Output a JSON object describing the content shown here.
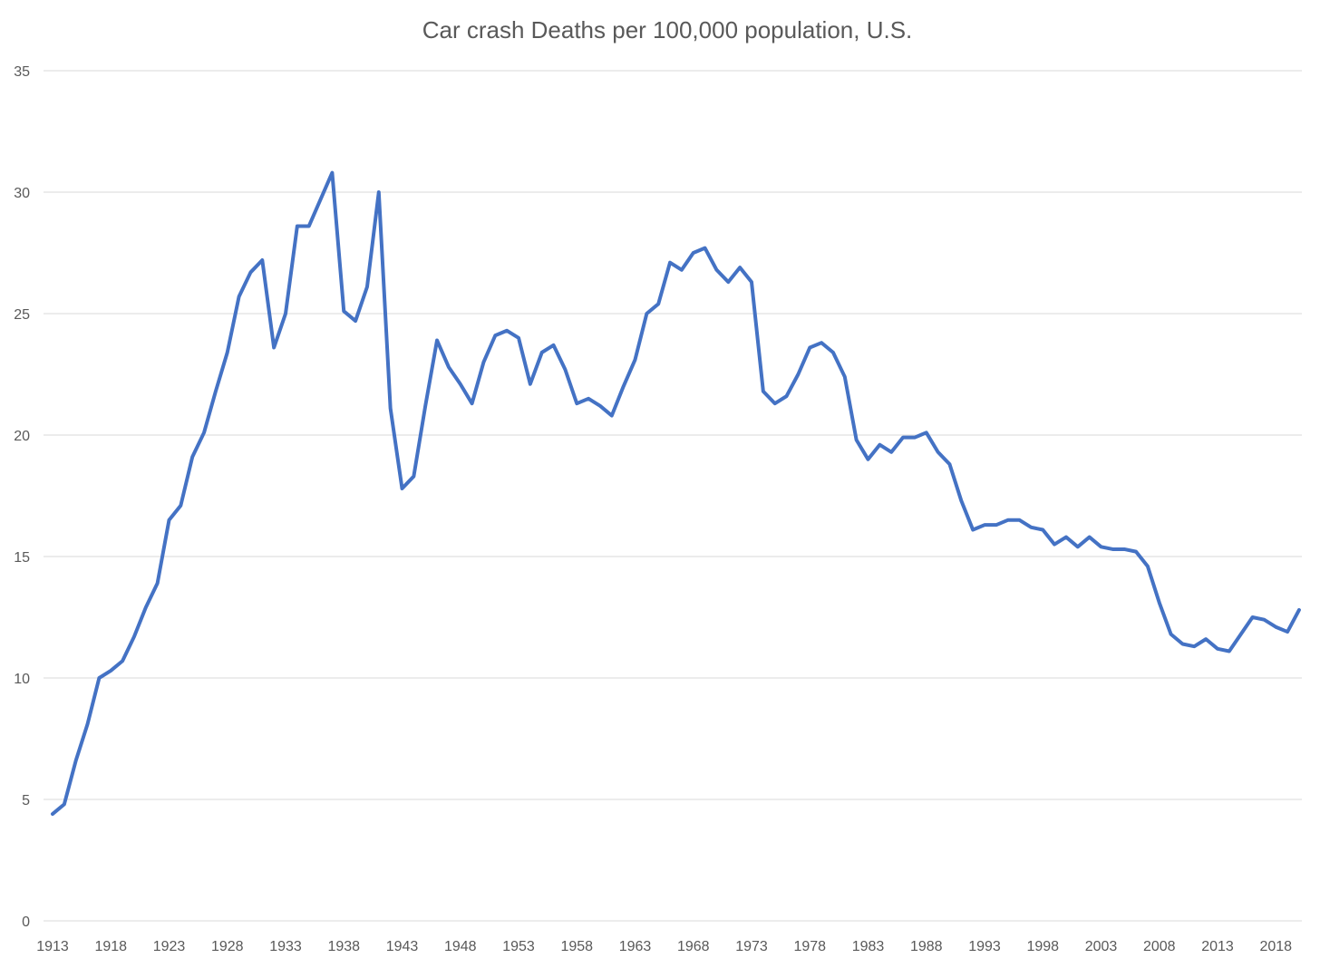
{
  "chart_data": {
    "type": "line",
    "title": "Car crash Deaths per 100,000 population, U.S.",
    "xlabel": "",
    "ylabel": "",
    "ylim": [
      0,
      35
    ],
    "yticks": [
      0,
      5,
      10,
      15,
      20,
      25,
      30,
      35
    ],
    "xtick_labels": [
      "1913",
      "1918",
      "1923",
      "1928",
      "1933",
      "1938",
      "1943",
      "1948",
      "1953",
      "1958",
      "1963",
      "1968",
      "1973",
      "1978",
      "1983",
      "1988",
      "1993",
      "1998",
      "2003",
      "2008",
      "2013",
      "2018"
    ],
    "grid": true,
    "legend": "none",
    "line_color": "#4472c4",
    "grid_color": "#d9d9d9",
    "text_color": "#595959",
    "x": [
      1913,
      1914,
      1915,
      1916,
      1917,
      1918,
      1919,
      1920,
      1921,
      1922,
      1923,
      1924,
      1925,
      1926,
      1927,
      1928,
      1929,
      1930,
      1931,
      1932,
      1933,
      1934,
      1935,
      1936,
      1937,
      1938,
      1939,
      1940,
      1941,
      1942,
      1943,
      1944,
      1945,
      1946,
      1947,
      1948,
      1949,
      1950,
      1951,
      1952,
      1953,
      1954,
      1955,
      1956,
      1957,
      1958,
      1959,
      1960,
      1961,
      1962,
      1963,
      1964,
      1965,
      1966,
      1967,
      1968,
      1969,
      1970,
      1971,
      1972,
      1973,
      1974,
      1975,
      1976,
      1977,
      1978,
      1979,
      1980,
      1981,
      1982,
      1983,
      1984,
      1985,
      1986,
      1987,
      1988,
      1989,
      1990,
      1991,
      1992,
      1993,
      1994,
      1995,
      1996,
      1997,
      1998,
      1999,
      2000,
      2001,
      2002,
      2003,
      2004,
      2005,
      2006,
      2007,
      2008,
      2009,
      2010,
      2011,
      2012,
      2013,
      2014,
      2015,
      2016,
      2017,
      2018,
      2019,
      2020
    ],
    "series": [
      {
        "values": [
          4.4,
          4.8,
          6.6,
          8.1,
          10.0,
          10.3,
          10.7,
          11.7,
          12.9,
          13.9,
          16.5,
          17.1,
          19.1,
          20.1,
          21.8,
          23.4,
          25.7,
          26.7,
          27.2,
          23.6,
          25.0,
          28.6,
          28.6,
          29.7,
          30.8,
          25.1,
          24.7,
          26.1,
          30.0,
          21.1,
          17.8,
          18.3,
          21.2,
          23.9,
          22.8,
          22.1,
          21.3,
          23.0,
          24.1,
          24.3,
          24.0,
          22.1,
          23.4,
          23.7,
          22.7,
          21.3,
          21.5,
          21.2,
          20.8,
          22.0,
          23.1,
          25.0,
          25.4,
          27.1,
          26.8,
          27.5,
          27.7,
          26.8,
          26.3,
          26.9,
          26.3,
          21.8,
          21.3,
          21.6,
          22.5,
          23.6,
          23.8,
          23.4,
          22.4,
          19.8,
          19.0,
          19.6,
          19.3,
          19.9,
          19.9,
          20.1,
          19.3,
          18.8,
          17.3,
          16.1,
          16.3,
          16.3,
          16.5,
          16.5,
          16.2,
          16.1,
          15.5,
          15.8,
          15.4,
          15.8,
          15.4,
          15.3,
          15.3,
          15.2,
          14.6,
          13.1,
          11.8,
          11.4,
          11.3,
          11.6,
          11.2,
          11.1,
          11.8,
          12.5,
          12.4,
          12.1,
          11.9,
          12.8
        ]
      }
    ]
  }
}
